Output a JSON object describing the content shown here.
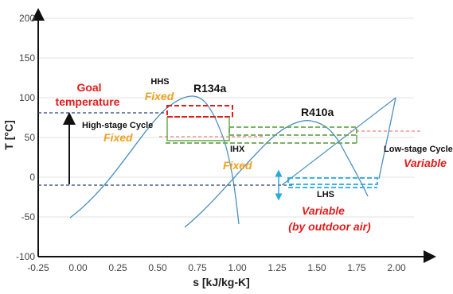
{
  "axes": {
    "xlabel": "s [kJ/kg-K]",
    "ylabel": "T [°C]",
    "x_ticks": [
      "-0.25",
      "0.00",
      "0.25",
      "0.50",
      "0.75",
      "1.00",
      "1.25",
      "1.50",
      "1.75",
      "2.00"
    ],
    "y_ticks": [
      "200",
      "150",
      "100",
      "50",
      "0",
      "-50",
      "-100"
    ]
  },
  "fluids": {
    "r134a": "R134a",
    "r410a": "R410a"
  },
  "labels": {
    "goal_line1": "Goal",
    "goal_line2": "temperature",
    "hhs": "HHS",
    "hhs_state": "Fixed",
    "high_stage": "High-stage Cycle",
    "high_stage_state": "Fixed",
    "ihx": "IHX",
    "ihx_state": "Fixed",
    "low_stage": "Low-stage Cycle",
    "low_stage_state": "Variable",
    "lhs": "LHS",
    "lhs_state": "Variable",
    "lhs_note": "(by outdoor air)"
  },
  "colors": {
    "curve": "#4a8fc0",
    "red": "#e31b1b",
    "green": "#6aa84f",
    "cyan": "#29a8e0",
    "orange": "#f0a020"
  }
}
